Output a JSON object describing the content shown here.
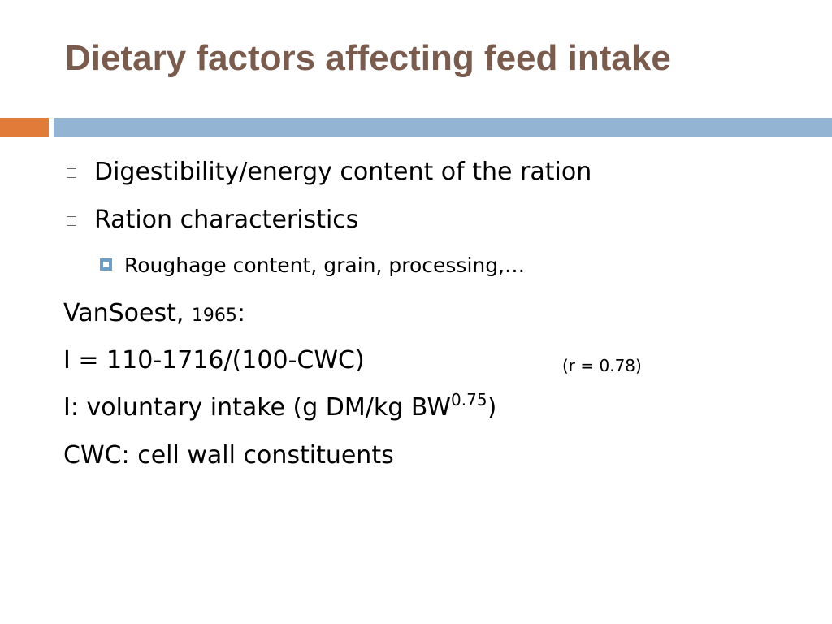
{
  "slide": {
    "title": "Dietary factors affecting feed intake",
    "colors": {
      "title": "#7a5c4f",
      "accent_bar": "#e07b39",
      "main_bar": "#93b4d3",
      "bullet_square": "#666666",
      "sub_bullet": "#6d9ec8",
      "text": "#000000"
    },
    "bullets": [
      {
        "icon": "hollow-square-bullet-icon",
        "text": "Digestibility/energy content of the ration"
      },
      {
        "icon": "hollow-square-bullet-icon",
        "text": "Ration characteristics"
      }
    ],
    "sub_bullets": [
      {
        "icon": "filled-square-bullet-icon",
        "text": "Roughage content, grain, processing,…"
      }
    ],
    "reference": {
      "author": "VanSoest, ",
      "year": "1965",
      "colon": ":"
    },
    "equation": {
      "formula": "I = 110-1716/(100-CWC)",
      "correlation": "(r = 0.78)"
    },
    "definition_i": {
      "prefix": "I: voluntary intake (g DM/kg BW",
      "exponent": "0.75",
      "suffix": ")"
    },
    "definition_cwc": "CWC: cell wall constituents"
  }
}
